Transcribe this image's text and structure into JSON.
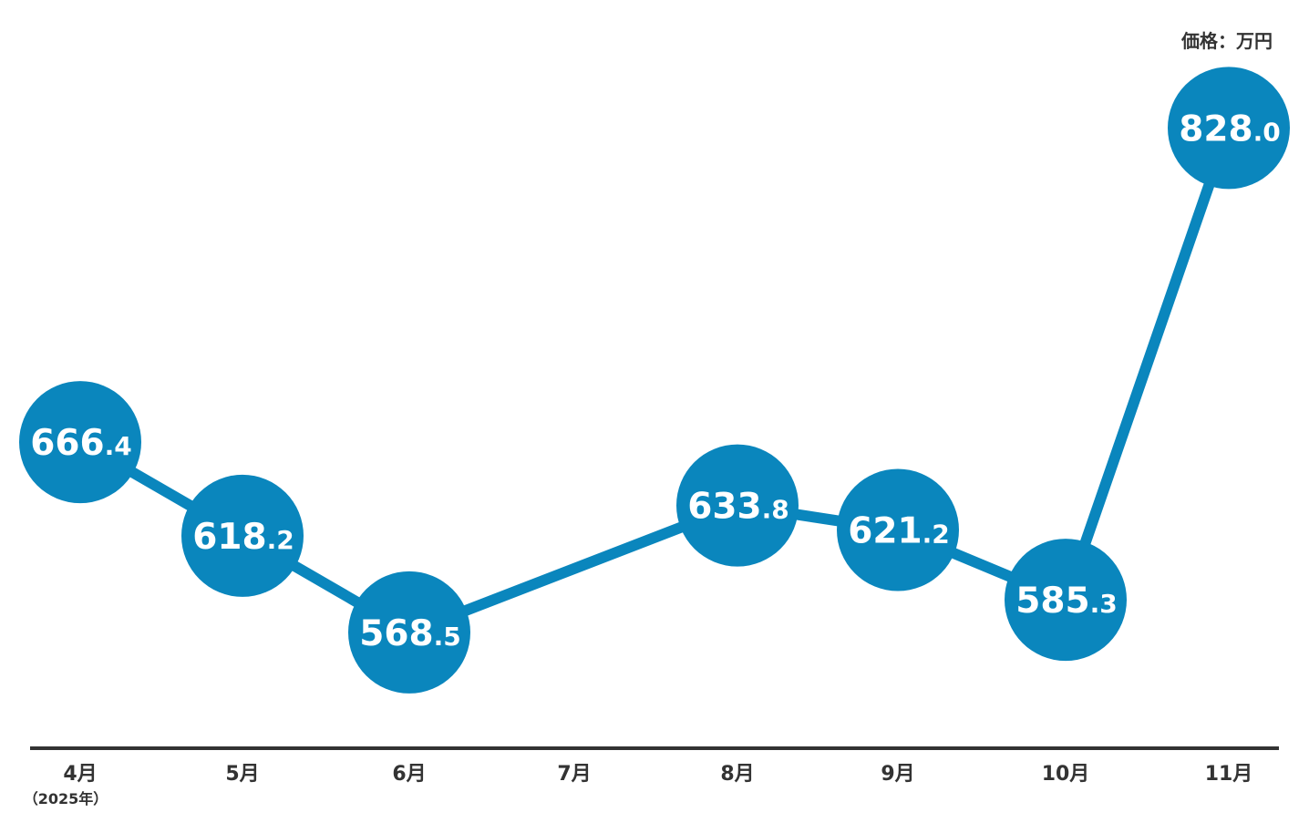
{
  "unit_label": "価格：万円",
  "year_note": "（2025年）",
  "colors": {
    "series": "#0a86bd",
    "axis": "#333333",
    "text": "#333333",
    "value_text": "#ffffff"
  },
  "chart_data": {
    "type": "line",
    "categories": [
      "4月",
      "5月",
      "6月",
      "7月",
      "8月",
      "9月",
      "10月",
      "11月"
    ],
    "series": [
      {
        "values": [
          {
            "x": "4月",
            "int": "666",
            "dec": ".4",
            "y": 666.4
          },
          {
            "x": "5月",
            "int": "618",
            "dec": ".2",
            "y": 618.2
          },
          {
            "x": "6月",
            "int": "568",
            "dec": ".5",
            "y": 568.5
          },
          {
            "x": "8月",
            "int": "633",
            "dec": ".8",
            "y": 633.8
          },
          {
            "x": "9月",
            "int": "621",
            "dec": ".2",
            "y": 621.2
          },
          {
            "x": "10月",
            "int": "585",
            "dec": ".3",
            "y": 585.3
          },
          {
            "x": "11月",
            "int": "828",
            "dec": ".0",
            "y": 828.0
          }
        ]
      }
    ],
    "xlabel": "",
    "ylabel": "",
    "title": "",
    "grid": false,
    "legend": false
  }
}
